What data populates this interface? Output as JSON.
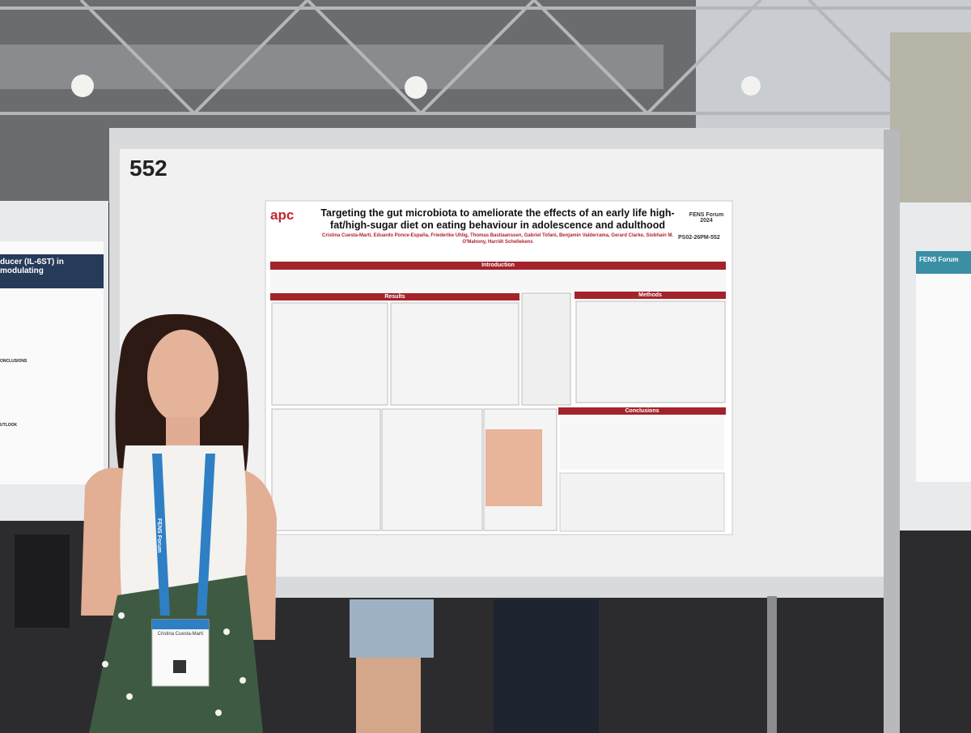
{
  "board_number": "552",
  "poster": {
    "logo": "apc",
    "title": "Targeting the gut microbiota to ameliorate the effects of an early life high-fat/high-sugar diet on eating behaviour in adolescence and adulthood",
    "authors": "Cristina Cuesta-Martí, Eduardo Ponce-España, Friederike Uhlig, Thomas Bastiaanssen, Gabriel Tofani, Benjamin Valderrama, Gerard Clarke, Siobhain M. O'Mahony, Harriët Schellekens",
    "forum": "FENS Forum 2024",
    "code": "PS02-26PM-552",
    "sections": [
      "Introduction",
      "Results",
      "Methods",
      "Conclusions"
    ]
  },
  "left_poster": {
    "heading": "ducer (IL-6ST) in modulating",
    "conclusions": "ONCLUSIONS",
    "outlook": "UTLOOK"
  },
  "right_poster": {
    "heading": "FENS Forum"
  },
  "badge": {
    "name": "Cristina Cuesta-Martí",
    "lanyard": "FENS Forum"
  }
}
